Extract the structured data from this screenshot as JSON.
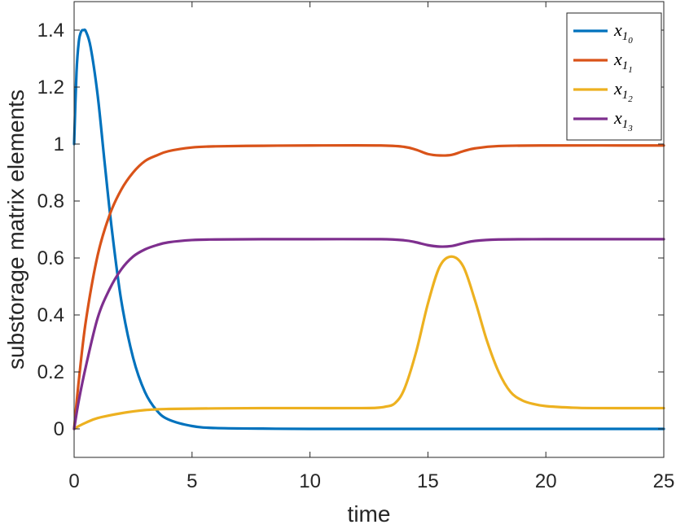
{
  "chart_data": {
    "type": "line",
    "xlabel": "time",
    "ylabel": "substorage  matrix  elements",
    "xlim": [
      0,
      25
    ],
    "ylim": [
      -0.1,
      1.5
    ],
    "xticks": [
      0,
      5,
      10,
      15,
      20,
      25
    ],
    "yticks": [
      0,
      0.2,
      0.4,
      0.6,
      0.8,
      1,
      1.2,
      1.4
    ],
    "xtick_labels": [
      "0",
      "5",
      "10",
      "15",
      "20",
      "25"
    ],
    "ytick_labels": [
      "0",
      "0.2",
      "0.4",
      "0.6",
      "0.8",
      "1",
      "1.2",
      "1.4"
    ],
    "grid": false,
    "legend_position": "top-right",
    "series": [
      {
        "name": "x_{1_0}",
        "label_base": "x",
        "label_sub": "1",
        "label_subsub": "0",
        "color": "#0072BD",
        "x": [
          0,
          0.1,
          0.2,
          0.3,
          0.4,
          0.5,
          0.7,
          1.0,
          1.3,
          1.6,
          2.0,
          2.5,
          3.0,
          3.5,
          4.0,
          5.0,
          6.0,
          8.0,
          10.0,
          15.0,
          20.0,
          25.0
        ],
        "y": [
          1.0,
          1.25,
          1.36,
          1.395,
          1.4,
          1.395,
          1.34,
          1.17,
          0.93,
          0.7,
          0.45,
          0.25,
          0.13,
          0.065,
          0.033,
          0.01,
          0.003,
          0.001,
          0.0,
          0.0,
          0.0,
          0.0
        ]
      },
      {
        "name": "x_{1_1}",
        "label_base": "x",
        "label_sub": "1",
        "label_subsub": "1",
        "color": "#D95319",
        "x": [
          0,
          0.2,
          0.5,
          1.0,
          1.5,
          2.0,
          2.5,
          3.0,
          3.5,
          4.0,
          5.0,
          6.0,
          8.0,
          10.0,
          13.0,
          14.0,
          14.5,
          15.0,
          15.5,
          16.0,
          16.5,
          17.0,
          18.0,
          20.0,
          25.0
        ],
        "y": [
          0.0,
          0.17,
          0.38,
          0.61,
          0.75,
          0.84,
          0.9,
          0.94,
          0.96,
          0.975,
          0.988,
          0.992,
          0.994,
          0.995,
          0.995,
          0.99,
          0.98,
          0.965,
          0.96,
          0.962,
          0.975,
          0.985,
          0.993,
          0.995,
          0.995
        ]
      },
      {
        "name": "x_{1_2}",
        "label_base": "x",
        "label_sub": "1",
        "label_subsub": "2",
        "color": "#EDB120",
        "x": [
          0,
          0.2,
          0.5,
          1.0,
          2.0,
          3.0,
          4.0,
          5.0,
          6.0,
          8.0,
          10.0,
          12.0,
          12.8,
          13.2,
          13.6,
          14.0,
          14.5,
          15.0,
          15.5,
          16.0,
          16.5,
          17.0,
          17.5,
          18.0,
          18.5,
          19.0,
          19.5,
          20.0,
          21.0,
          22.0,
          25.0
        ],
        "y": [
          0.0,
          0.01,
          0.022,
          0.038,
          0.055,
          0.066,
          0.07,
          0.071,
          0.072,
          0.073,
          0.073,
          0.073,
          0.074,
          0.078,
          0.09,
          0.14,
          0.27,
          0.44,
          0.57,
          0.605,
          0.57,
          0.45,
          0.31,
          0.2,
          0.13,
          0.1,
          0.087,
          0.08,
          0.075,
          0.073,
          0.073
        ]
      },
      {
        "name": "x_{1_3}",
        "label_base": "x",
        "label_sub": "1",
        "label_subsub": "3",
        "color": "#7E2F8E",
        "x": [
          0,
          0.2,
          0.5,
          1.0,
          1.5,
          2.0,
          2.5,
          3.0,
          3.5,
          4.0,
          5.0,
          6.0,
          8.0,
          10.0,
          13.0,
          14.0,
          14.5,
          15.0,
          15.5,
          16.0,
          16.5,
          17.0,
          18.0,
          20.0,
          25.0
        ],
        "y": [
          0.0,
          0.1,
          0.22,
          0.39,
          0.49,
          0.56,
          0.605,
          0.63,
          0.645,
          0.655,
          0.663,
          0.665,
          0.666,
          0.666,
          0.666,
          0.662,
          0.655,
          0.645,
          0.64,
          0.642,
          0.652,
          0.66,
          0.665,
          0.666,
          0.666
        ]
      }
    ]
  }
}
